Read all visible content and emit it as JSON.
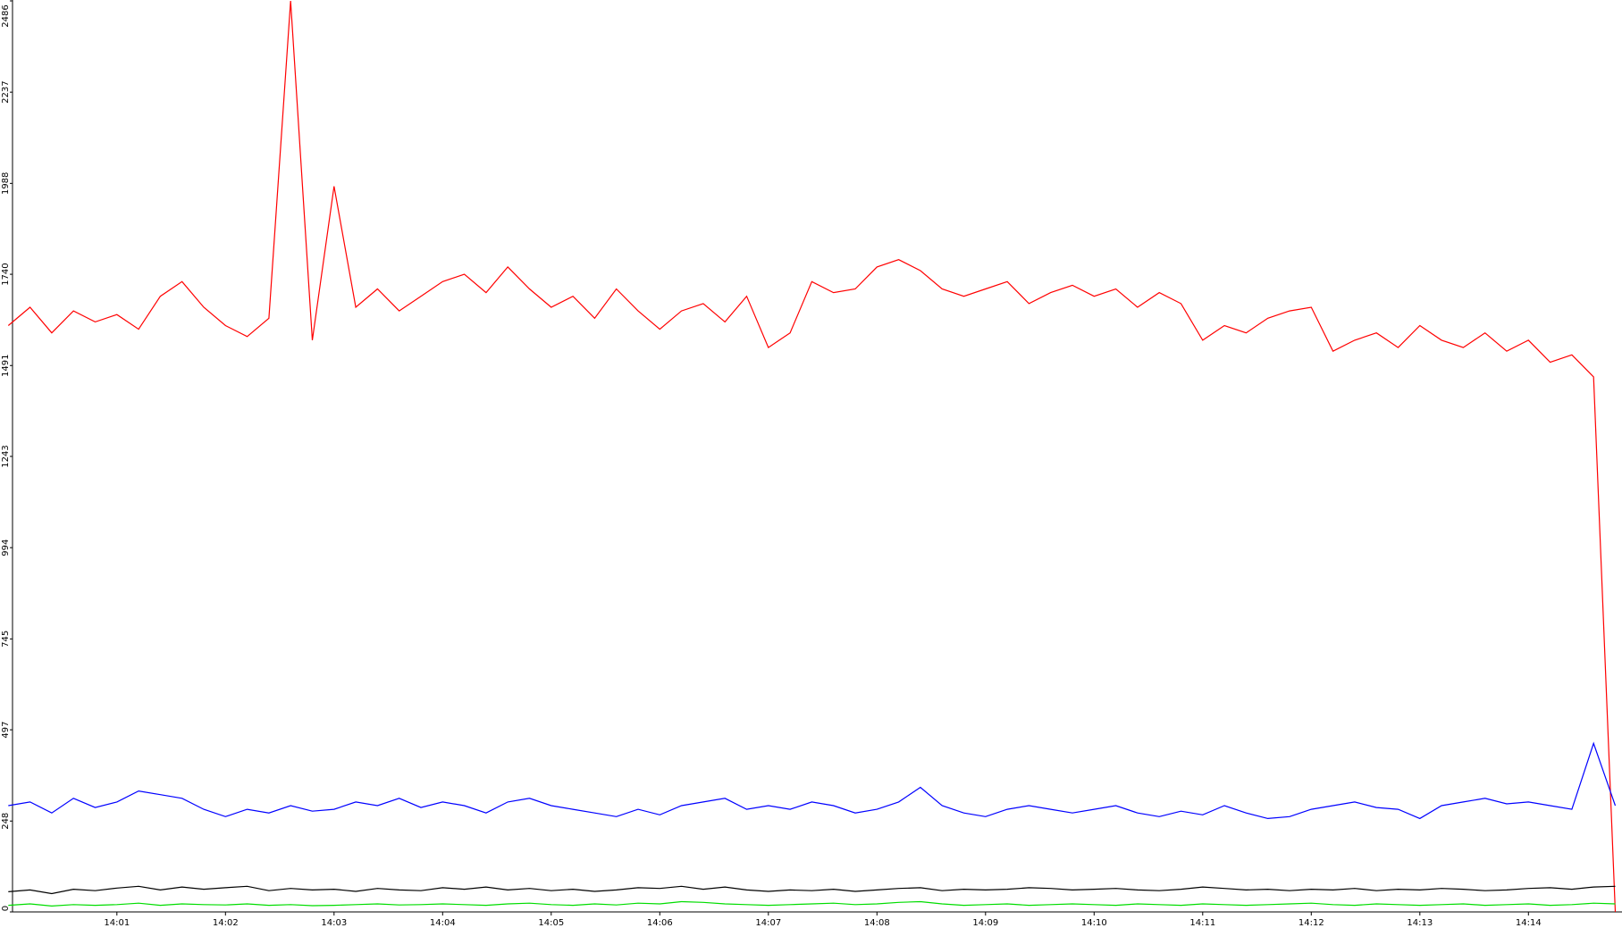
{
  "chart_data": {
    "type": "line",
    "categories": [
      null,
      null,
      null,
      null,
      null,
      "14:01",
      null,
      null,
      null,
      null,
      "14:02",
      null,
      null,
      null,
      null,
      "14:03",
      null,
      null,
      null,
      null,
      "14:04",
      null,
      null,
      null,
      null,
      "14:05",
      null,
      null,
      null,
      null,
      "14:06",
      null,
      null,
      null,
      null,
      "14:07",
      null,
      null,
      null,
      null,
      "14:08",
      null,
      null,
      null,
      null,
      "14:09",
      null,
      null,
      null,
      null,
      "14:10",
      null,
      null,
      null,
      null,
      "14:11",
      null,
      null,
      null,
      null,
      "14:12",
      null,
      null,
      null,
      null,
      "14:13",
      null,
      null,
      null,
      null,
      "14:14",
      null,
      null,
      null,
      null
    ],
    "series": [
      {
        "color": "#ff0000",
        "values": [
          1600,
          1650,
          1580,
          1640,
          1610,
          1630,
          1590,
          1680,
          1720,
          1650,
          1600,
          1570,
          1620,
          2486,
          1560,
          1980,
          1650,
          1700,
          1640,
          1680,
          1720,
          1740,
          1690,
          1760,
          1700,
          1650,
          1680,
          1620,
          1700,
          1640,
          1590,
          1640,
          1660,
          1610,
          1680,
          1540,
          1580,
          1720,
          1690,
          1700,
          1760,
          1780,
          1750,
          1700,
          1680,
          1700,
          1720,
          1660,
          1690,
          1710,
          1680,
          1700,
          1650,
          1690,
          1660,
          1560,
          1600,
          1580,
          1620,
          1640,
          1650,
          1530,
          1560,
          1580,
          1540,
          1600,
          1560,
          1540,
          1580,
          1530,
          1560,
          1500,
          1520,
          1460,
          0
        ]
      },
      {
        "color": "#0000ff",
        "values": [
          290,
          300,
          270,
          310,
          285,
          300,
          330,
          320,
          310,
          280,
          260,
          280,
          270,
          290,
          275,
          280,
          300,
          290,
          310,
          285,
          300,
          290,
          270,
          300,
          310,
          290,
          280,
          270,
          260,
          280,
          265,
          290,
          300,
          310,
          280,
          290,
          280,
          300,
          290,
          270,
          280,
          300,
          340,
          290,
          270,
          260,
          280,
          290,
          280,
          270,
          280,
          290,
          270,
          260,
          275,
          265,
          290,
          270,
          255,
          260,
          280,
          290,
          300,
          285,
          280,
          255,
          290,
          300,
          310,
          295,
          300,
          290,
          280,
          460,
          290
        ]
      },
      {
        "color": "#000000",
        "values": [
          55,
          60,
          50,
          62,
          58,
          65,
          70,
          60,
          68,
          62,
          66,
          70,
          58,
          64,
          60,
          62,
          56,
          64,
          60,
          58,
          66,
          62,
          68,
          60,
          64,
          58,
          62,
          56,
          60,
          66,
          64,
          70,
          62,
          68,
          60,
          56,
          60,
          58,
          62,
          56,
          60,
          64,
          66,
          58,
          62,
          60,
          62,
          66,
          64,
          60,
          62,
          64,
          60,
          58,
          62,
          68,
          64,
          60,
          62,
          58,
          62,
          60,
          64,
          58,
          62,
          60,
          64,
          62,
          58,
          60,
          64,
          66,
          62,
          68,
          70
        ]
      },
      {
        "color": "#00dd00",
        "values": [
          18,
          22,
          16,
          20,
          18,
          20,
          24,
          18,
          22,
          20,
          19,
          22,
          18,
          20,
          17,
          18,
          20,
          22,
          19,
          20,
          22,
          20,
          18,
          22,
          24,
          20,
          18,
          22,
          19,
          24,
          22,
          28,
          26,
          22,
          20,
          18,
          20,
          22,
          24,
          20,
          22,
          26,
          28,
          22,
          18,
          20,
          22,
          18,
          20,
          22,
          20,
          18,
          22,
          20,
          18,
          22,
          20,
          18,
          20,
          22,
          24,
          20,
          18,
          22,
          20,
          18,
          20,
          22,
          18,
          20,
          22,
          18,
          20,
          24,
          22
        ]
      }
    ],
    "ylim": [
      0,
      2486
    ],
    "yticks": [
      0,
      248,
      497,
      745,
      994,
      1243,
      1491,
      1740,
      1988,
      2237,
      2486
    ]
  }
}
